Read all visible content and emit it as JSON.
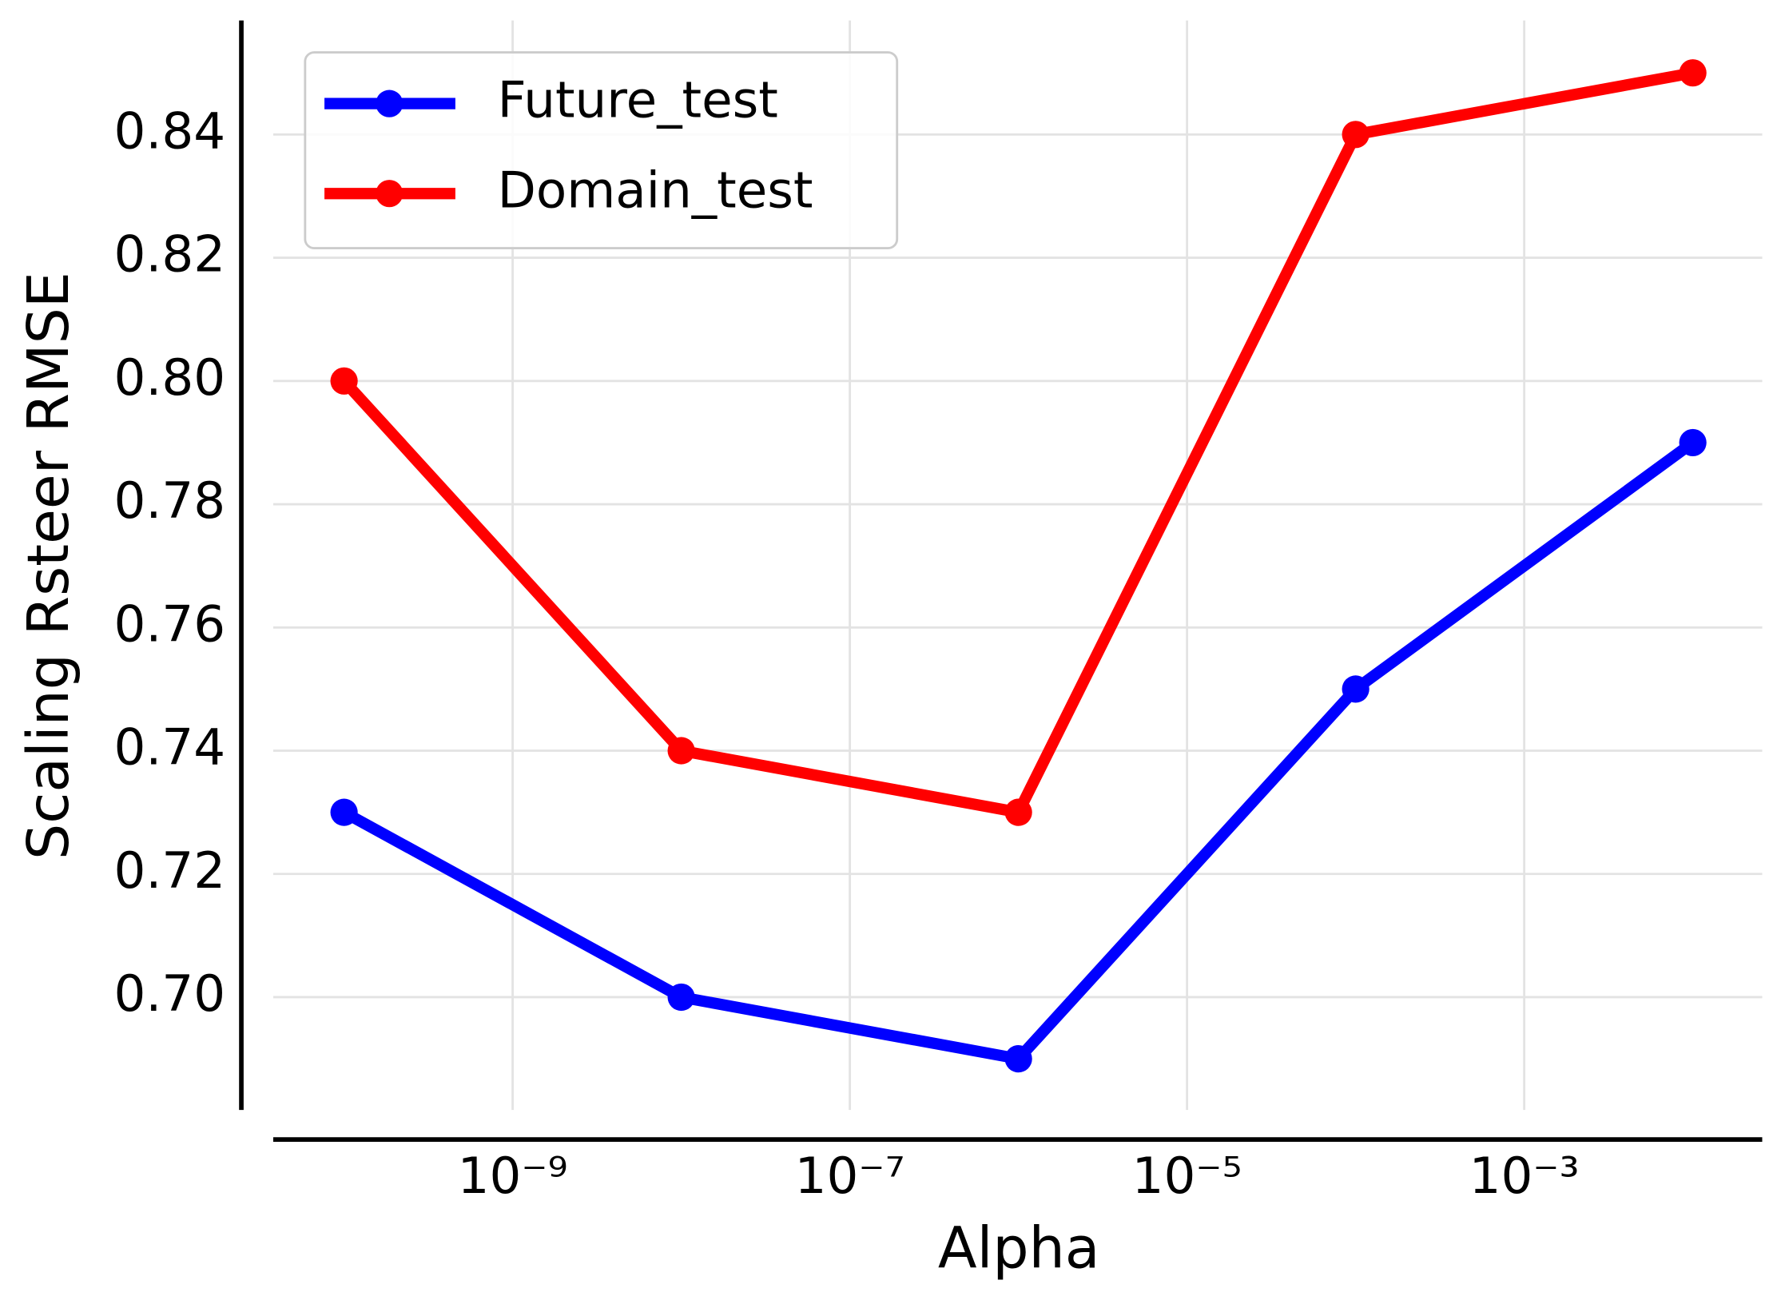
{
  "chart_data": {
    "type": "line",
    "x_label": "Alpha",
    "y_label": "Scaling Rsteer RMSE",
    "x": [
      1e-10,
      1e-08,
      1e-06,
      0.0001,
      0.01
    ],
    "series": [
      {
        "name": "Future_test",
        "color": "#0000ff",
        "values": [
          0.73,
          0.7,
          0.69,
          0.75,
          0.79
        ]
      },
      {
        "name": "Domain_test",
        "color": "#ff0000",
        "values": [
          0.8,
          0.74,
          0.73,
          0.84,
          0.85
        ]
      }
    ],
    "xscale": "log",
    "xlim": [
      3.8e-11,
      0.0258
    ],
    "xticks": [
      {
        "value": 1e-09,
        "label": "10⁻⁹"
      },
      {
        "value": 1e-07,
        "label": "10⁻⁷"
      },
      {
        "value": 1e-05,
        "label": "10⁻⁵"
      },
      {
        "value": 0.001,
        "label": "10⁻³"
      }
    ],
    "ylim": [
      0.6817,
      0.8585
    ],
    "yticks": [
      {
        "value": 0.7,
        "label": "0.70"
      },
      {
        "value": 0.72,
        "label": "0.72"
      },
      {
        "value": 0.74,
        "label": "0.74"
      },
      {
        "value": 0.76,
        "label": "0.76"
      },
      {
        "value": 0.78,
        "label": "0.78"
      },
      {
        "value": 0.8,
        "label": "0.80"
      },
      {
        "value": 0.82,
        "label": "0.82"
      },
      {
        "value": 0.84,
        "label": "0.84"
      }
    ],
    "grid": true,
    "legend": "upper left"
  }
}
